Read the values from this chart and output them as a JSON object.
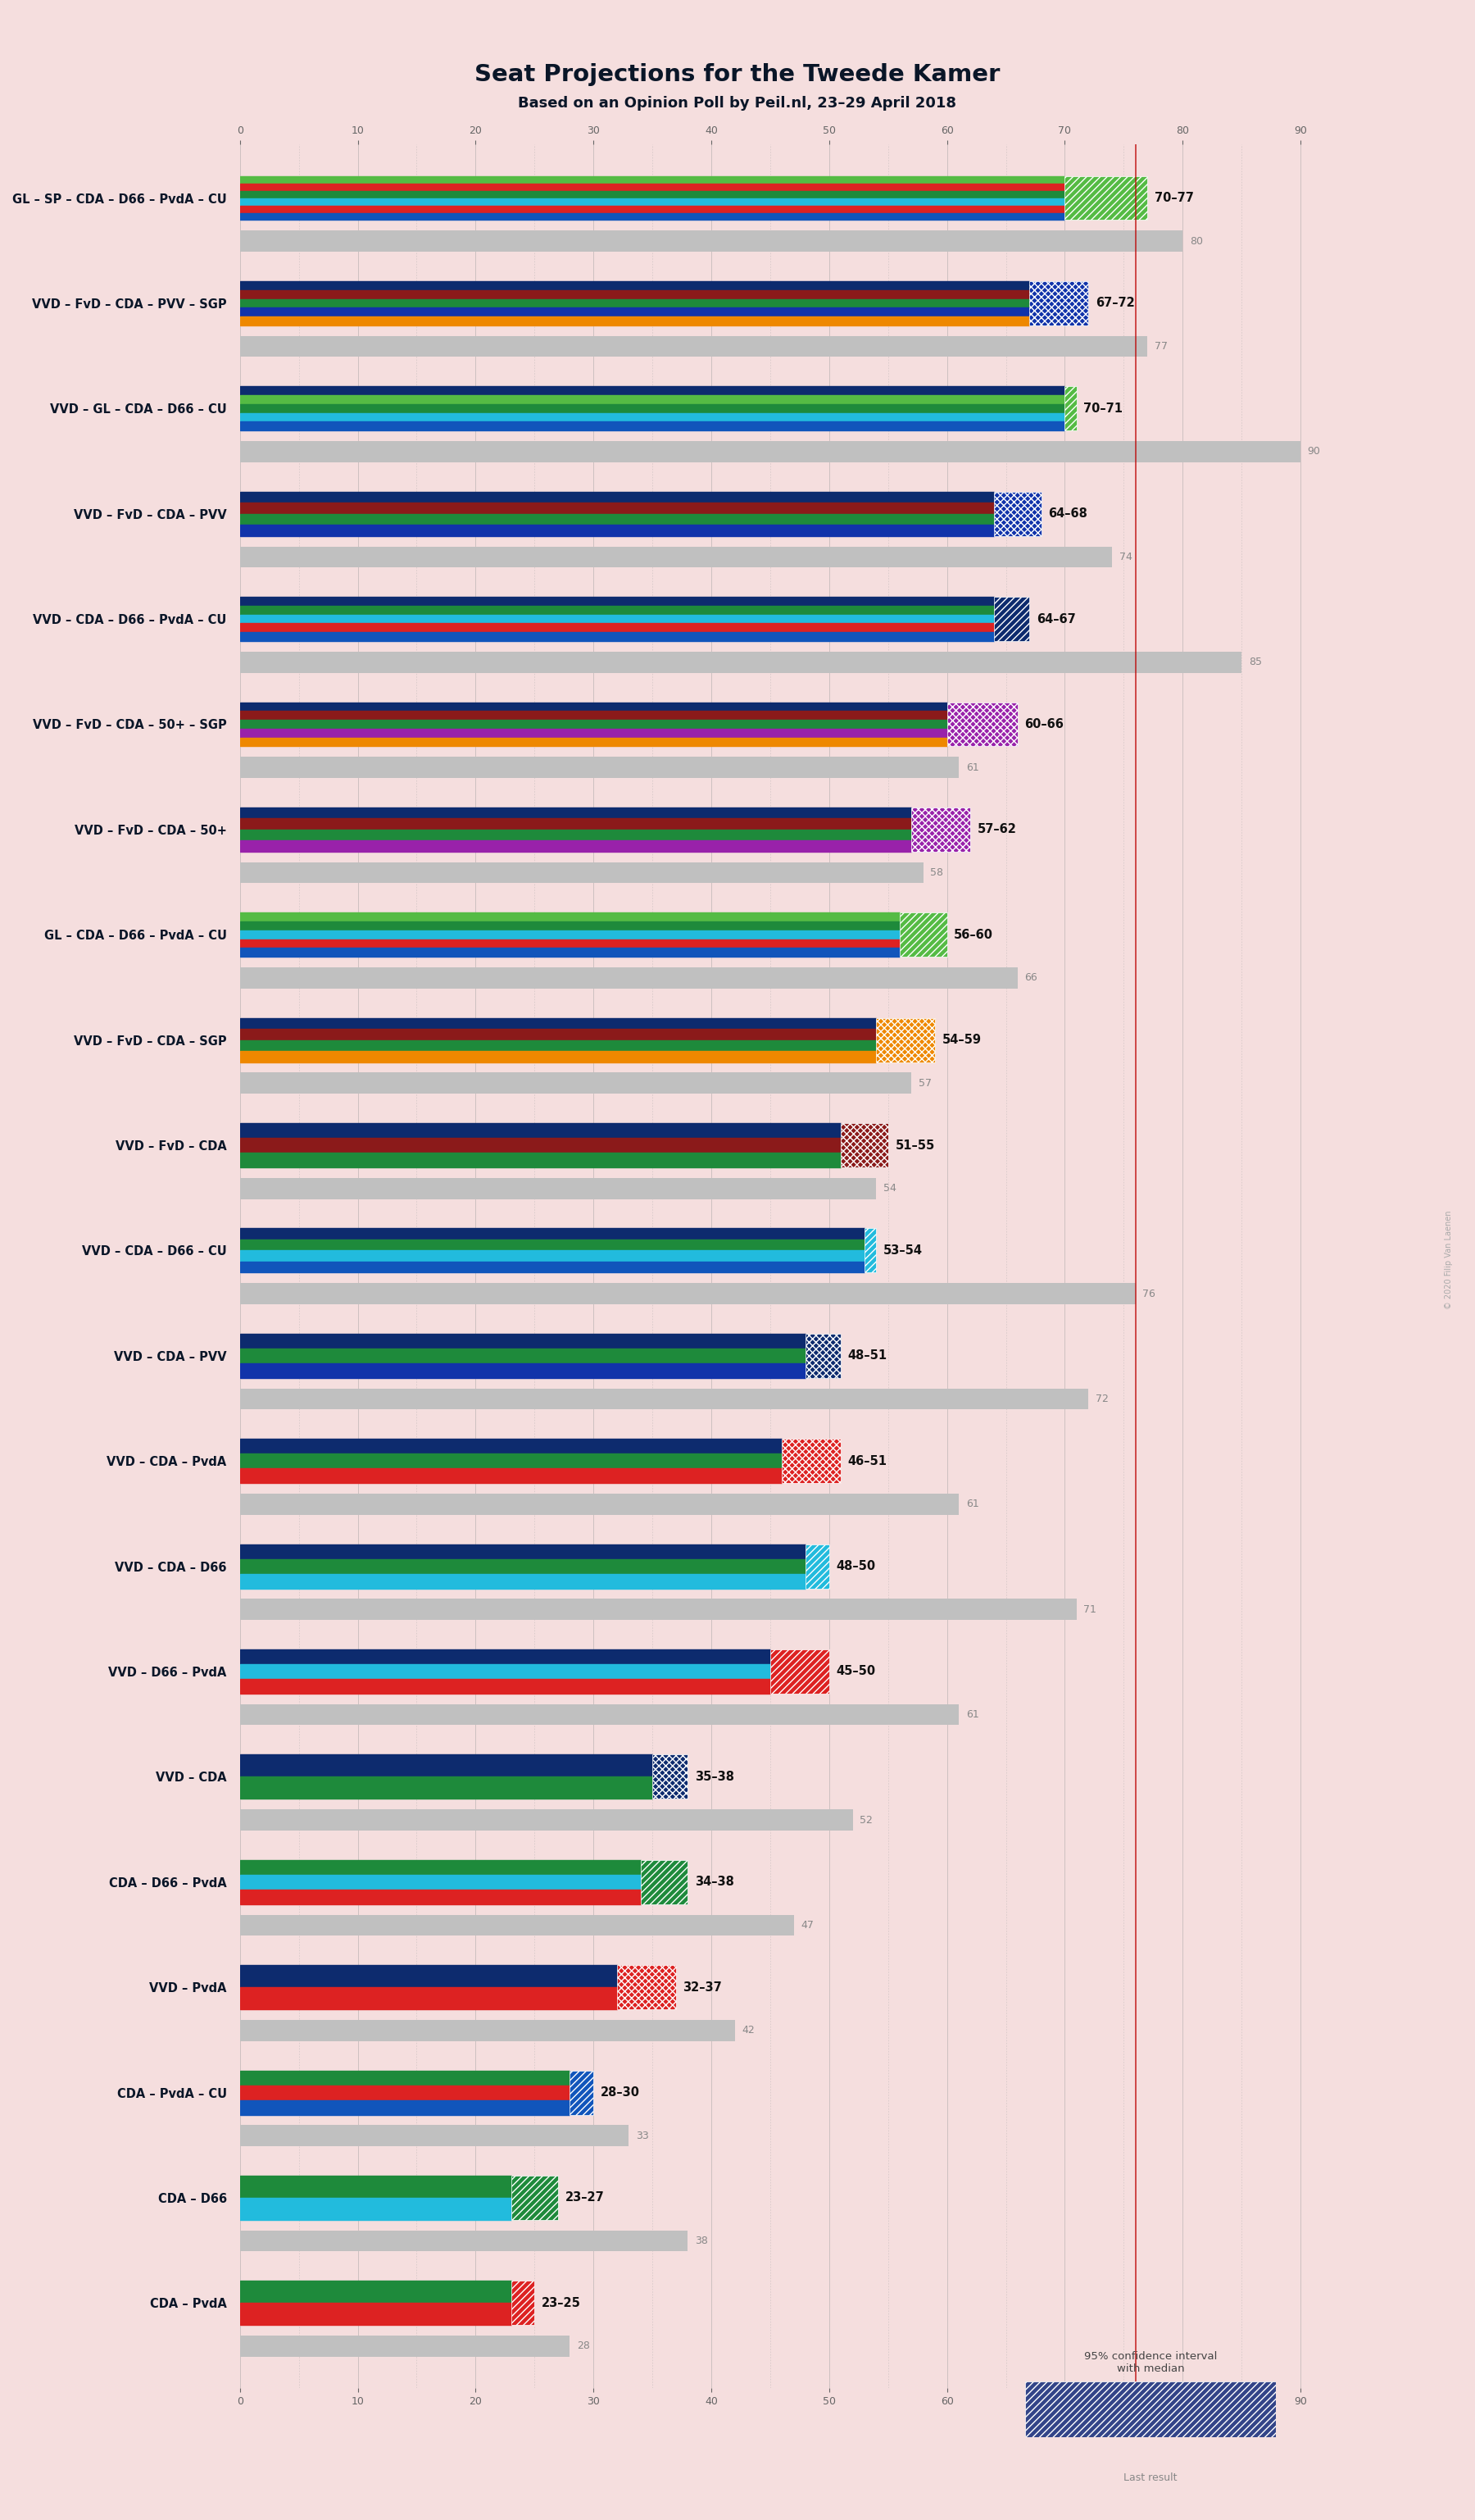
{
  "title": "Seat Projections for the Tweede Kamer",
  "subtitle": "Based on an Opinion Poll by Peil.nl, 23–29 April 2018",
  "background_color": "#f5dede",
  "coalitions": [
    "GL – SP – CDA – D66 – PvdA – CU",
    "VVD – FvD – CDA – PVV – SGP",
    "VVD – GL – CDA – D66 – CU",
    "VVD – FvD – CDA – PVV",
    "VVD – CDA – D66 – PvdA – CU",
    "VVD – FvD – CDA – 50+ – SGP",
    "VVD – FvD – CDA – 50+",
    "GL – CDA – D66 – PvdA – CU",
    "VVD – FvD – CDA – SGP",
    "VVD – FvD – CDA",
    "VVD – CDA – D66 – CU",
    "VVD – CDA – PVV",
    "VVD – CDA – PvdA",
    "VVD – CDA – D66",
    "VVD – D66 – PvdA",
    "VVD – CDA",
    "CDA – D66 – PvdA",
    "VVD – PvdA",
    "CDA – PvdA – CU",
    "CDA – D66",
    "CDA – PvdA"
  ],
  "underlined_idx": 10,
  "ci_low": [
    70,
    67,
    70,
    64,
    64,
    60,
    57,
    56,
    54,
    51,
    53,
    48,
    46,
    48,
    45,
    35,
    34,
    32,
    28,
    23,
    23
  ],
  "ci_high": [
    77,
    72,
    71,
    68,
    67,
    66,
    62,
    60,
    59,
    55,
    54,
    51,
    51,
    50,
    50,
    38,
    38,
    37,
    30,
    27,
    25
  ],
  "last_result": [
    80,
    77,
    90,
    74,
    85,
    61,
    58,
    66,
    57,
    54,
    76,
    72,
    61,
    71,
    61,
    52,
    47,
    42,
    33,
    38,
    28
  ],
  "majority": 76,
  "x_max": 95,
  "coalition_colors": [
    [
      "#55bb44",
      "#dd2222",
      "#1e8a3b",
      "#22bbdd",
      "#dd2222",
      "#1155bb"
    ],
    [
      "#0d2b6e",
      "#8b1a1a",
      "#1e8a3b",
      "#1133aa",
      "#ee8800"
    ],
    [
      "#0d2b6e",
      "#55bb44",
      "#1e8a3b",
      "#22bbdd",
      "#1155bb"
    ],
    [
      "#0d2b6e",
      "#8b1a1a",
      "#1e8a3b",
      "#1133aa"
    ],
    [
      "#0d2b6e",
      "#1e8a3b",
      "#22bbdd",
      "#dd2222",
      "#1155bb"
    ],
    [
      "#0d2b6e",
      "#8b1a1a",
      "#1e8a3b",
      "#9922aa",
      "#ee8800"
    ],
    [
      "#0d2b6e",
      "#8b1a1a",
      "#1e8a3b",
      "#9922aa"
    ],
    [
      "#55bb44",
      "#1e8a3b",
      "#22bbdd",
      "#dd2222",
      "#1155bb"
    ],
    [
      "#0d2b6e",
      "#8b1a1a",
      "#1e8a3b",
      "#ee8800"
    ],
    [
      "#0d2b6e",
      "#8b1a1a",
      "#1e8a3b"
    ],
    [
      "#0d2b6e",
      "#1e8a3b",
      "#22bbdd",
      "#1155bb"
    ],
    [
      "#0d2b6e",
      "#1e8a3b",
      "#1133aa"
    ],
    [
      "#0d2b6e",
      "#1e8a3b",
      "#dd2222"
    ],
    [
      "#0d2b6e",
      "#1e8a3b",
      "#22bbdd"
    ],
    [
      "#0d2b6e",
      "#22bbdd",
      "#dd2222"
    ],
    [
      "#0d2b6e",
      "#1e8a3b"
    ],
    [
      "#1e8a3b",
      "#22bbdd",
      "#dd2222"
    ],
    [
      "#0d2b6e",
      "#dd2222"
    ],
    [
      "#1e8a3b",
      "#dd2222",
      "#1155bb"
    ],
    [
      "#1e8a3b",
      "#22bbdd"
    ],
    [
      "#1e8a3b",
      "#dd2222"
    ]
  ],
  "hatch_patterns": [
    "////",
    "xxxx",
    "////",
    "xxxx",
    "////",
    "xxxx",
    "xxxx",
    "////",
    "xxxx",
    "xxxx",
    "////",
    "xxxx",
    "xxxx",
    "////",
    "////",
    "xxxx",
    "////",
    "xxxx",
    "////",
    "////",
    "////"
  ],
  "hatch_facecolors": [
    "#55bb44",
    "#1133aa",
    "#55bb44",
    "#1133aa",
    "#0d2b6e",
    "#9922aa",
    "#9922aa",
    "#55bb44",
    "#ee8800",
    "#8b1a1a",
    "#22bbdd",
    "#0d2b6e",
    "#dd2222",
    "#22bbdd",
    "#dd2222",
    "#0d2b6e",
    "#1e8a3b",
    "#dd2222",
    "#1155bb",
    "#1e8a3b",
    "#dd2222"
  ],
  "hatch_edgecolors": [
    "white",
    "white",
    "white",
    "white",
    "white",
    "white",
    "white",
    "white",
    "white",
    "white",
    "white",
    "white",
    "white",
    "white",
    "white",
    "white",
    "white",
    "white",
    "white",
    "white",
    "white"
  ]
}
